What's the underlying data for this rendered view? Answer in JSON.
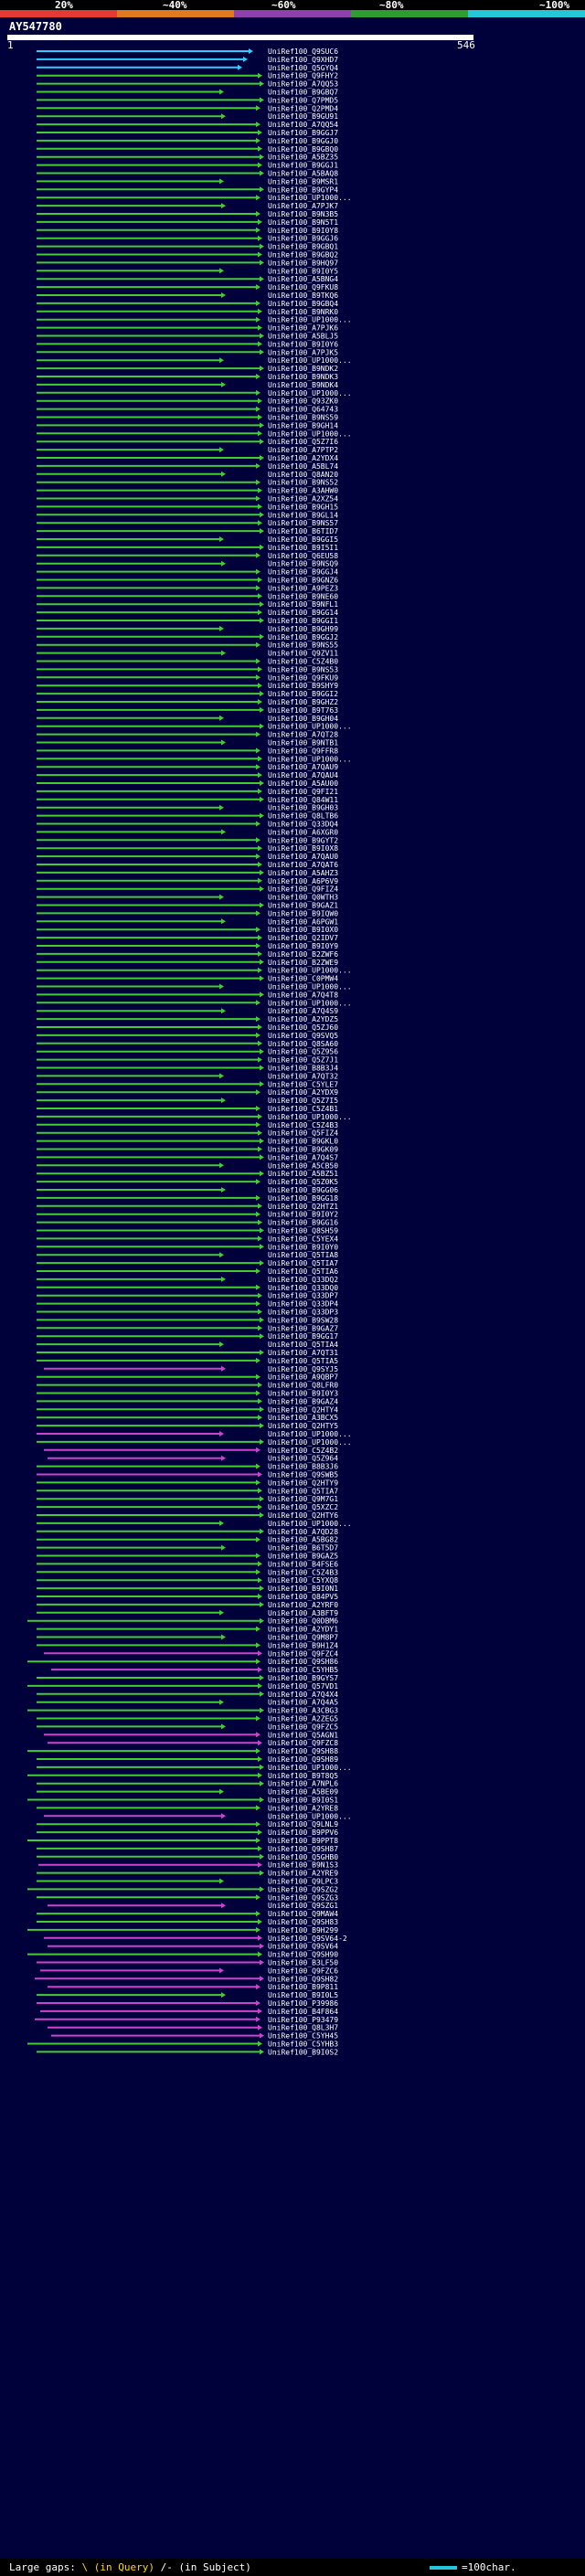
{
  "header": {
    "scale_labels": [
      "20%",
      "~40%",
      "~60%",
      "~80%",
      "~100%"
    ],
    "scale_colors": [
      "#e53935",
      "#e07a1f",
      "#8e3fb0",
      "#2e9d2e",
      "#26c6da"
    ],
    "query_name": "AY547780",
    "ruler_start": "1",
    "ruler_end": "546"
  },
  "hits": [
    {
      "id": "UniRef100_Q9SUC6",
      "color": "cyan"
    },
    {
      "id": "UniRef100_Q9XHD7",
      "color": "cyan"
    },
    {
      "id": "UniRef100_Q5GYQ4",
      "color": "cyan"
    },
    {
      "id": "UniRef100_Q9FHY2",
      "color": "green"
    },
    {
      "id": "UniRef100_A7QQ53",
      "color": "green"
    },
    {
      "id": "UniRef100_B9GBQ7",
      "color": "green"
    },
    {
      "id": "UniRef100_Q7PMD5",
      "color": "green"
    },
    {
      "id": "UniRef100_Q2PMD4",
      "color": "green"
    },
    {
      "id": "UniRef100_B9GU91",
      "color": "green"
    },
    {
      "id": "UniRef100_A7QQ54",
      "color": "green"
    },
    {
      "id": "UniRef100_B9GGJ7",
      "color": "green"
    },
    {
      "id": "UniRef100_B9GGJ0",
      "color": "green"
    },
    {
      "id": "UniRef100_B9GBQ0",
      "color": "green"
    },
    {
      "id": "UniRef100_A5BZ35",
      "color": "green"
    },
    {
      "id": "UniRef100_B9GGJ1",
      "color": "green"
    },
    {
      "id": "UniRef100_A5BAQ8",
      "color": "green"
    },
    {
      "id": "UniRef100_B9MSR1",
      "color": "green"
    },
    {
      "id": "UniRef100_B9GYP4",
      "color": "green"
    },
    {
      "id": "UniRef100_UP1000...",
      "color": "green"
    },
    {
      "id": "UniRef100_A7PJK7",
      "color": "green"
    },
    {
      "id": "UniRef100_B9N3B5",
      "color": "green"
    },
    {
      "id": "UniRef100_B9N5T1",
      "color": "green"
    },
    {
      "id": "UniRef100_B9I0Y8",
      "color": "green"
    },
    {
      "id": "UniRef100_B9GGJ6",
      "color": "green"
    },
    {
      "id": "UniRef100_B9GBQ1",
      "color": "green"
    },
    {
      "id": "UniRef100_B9GBQ2",
      "color": "green"
    },
    {
      "id": "UniRef100_B9HQ97",
      "color": "green"
    },
    {
      "id": "UniRef100_B9I0Y5",
      "color": "green"
    },
    {
      "id": "UniRef100_A5BNG4",
      "color": "green"
    },
    {
      "id": "UniRef100_Q9FKU8",
      "color": "green"
    },
    {
      "id": "UniRef100_B9TKQ6",
      "color": "green"
    },
    {
      "id": "UniRef100_B9GBQ4",
      "color": "green"
    },
    {
      "id": "UniRef100_B9NRK0",
      "color": "green"
    },
    {
      "id": "UniRef100_UP1000...",
      "color": "green"
    },
    {
      "id": "UniRef100_A7PJK6",
      "color": "green"
    },
    {
      "id": "UniRef100_A5BLJ5",
      "color": "green"
    },
    {
      "id": "UniRef100_B9I0Y6",
      "color": "green"
    },
    {
      "id": "UniRef100_A7PJK5",
      "color": "green"
    },
    {
      "id": "UniRef100_UP1000...",
      "color": "green"
    },
    {
      "id": "UniRef100_B9NDK2",
      "color": "green"
    },
    {
      "id": "UniRef100_B9NDK3",
      "color": "green"
    },
    {
      "id": "UniRef100_B9NDK4",
      "color": "green"
    },
    {
      "id": "UniRef100_UP1000...",
      "color": "green"
    },
    {
      "id": "UniRef100_Q93ZK0",
      "color": "green"
    },
    {
      "id": "UniRef100_Q64743",
      "color": "green"
    },
    {
      "id": "UniRef100_B9NS59",
      "color": "green"
    },
    {
      "id": "UniRef100_B9GH14",
      "color": "green"
    },
    {
      "id": "UniRef100_UP1000...",
      "color": "green"
    },
    {
      "id": "UniRef100_Q5Z7I6",
      "color": "green"
    },
    {
      "id": "UniRef100_A7PTP2",
      "color": "green"
    },
    {
      "id": "UniRef100_A2YDX4",
      "color": "green"
    },
    {
      "id": "UniRef100_A5BL74",
      "color": "green"
    },
    {
      "id": "UniRef100_Q8AN20",
      "color": "green"
    },
    {
      "id": "UniRef100_B9NS52",
      "color": "green"
    },
    {
      "id": "UniRef100_A3AHW0",
      "color": "green"
    },
    {
      "id": "UniRef100_A2XZ54",
      "color": "green"
    },
    {
      "id": "UniRef100_B9GH15",
      "color": "green"
    },
    {
      "id": "UniRef100_B9GL14",
      "color": "green"
    },
    {
      "id": "UniRef100_B9NS57",
      "color": "green"
    },
    {
      "id": "UniRef100_B6TID7",
      "color": "green"
    },
    {
      "id": "UniRef100_B9GGI5",
      "color": "green"
    },
    {
      "id": "UniRef100_B9I5I1",
      "color": "green"
    },
    {
      "id": "UniRef100_Q6EU58",
      "color": "green"
    },
    {
      "id": "UniRef100_B9NSQ9",
      "color": "green"
    },
    {
      "id": "UniRef100_B9GGJ4",
      "color": "green"
    },
    {
      "id": "UniRef100_B9GNZ6",
      "color": "green"
    },
    {
      "id": "UniRef100_A9PEZ3",
      "color": "green"
    },
    {
      "id": "UniRef100_B9NE60",
      "color": "green"
    },
    {
      "id": "UniRef100_B9NFL1",
      "color": "green"
    },
    {
      "id": "UniRef100_B9GG14",
      "color": "green"
    },
    {
      "id": "UniRef100_B9GGI1",
      "color": "green"
    },
    {
      "id": "UniRef100_B9GH99",
      "color": "green"
    },
    {
      "id": "UniRef100_B9GGJ2",
      "color": "green"
    },
    {
      "id": "UniRef100_B9NS55",
      "color": "green"
    },
    {
      "id": "UniRef100_Q9ZV11",
      "color": "green"
    },
    {
      "id": "UniRef100_C5Z4B0",
      "color": "green"
    },
    {
      "id": "UniRef100_B9NS53",
      "color": "green"
    },
    {
      "id": "UniRef100_Q9FKU9",
      "color": "green"
    },
    {
      "id": "UniRef100_B9SHY9",
      "color": "green"
    },
    {
      "id": "UniRef100_B9GGI2",
      "color": "green"
    },
    {
      "id": "UniRef100_B9GHZ2",
      "color": "green"
    },
    {
      "id": "UniRef100_B9T763",
      "color": "green"
    },
    {
      "id": "UniRef100_B9GH04",
      "color": "green"
    },
    {
      "id": "UniRef100_UP1000...",
      "color": "green"
    },
    {
      "id": "UniRef100_A7QT28",
      "color": "green"
    },
    {
      "id": "UniRef100_B9NTB1",
      "color": "green"
    },
    {
      "id": "UniRef100_Q9FFR8",
      "color": "green"
    },
    {
      "id": "UniRef100_UP1000...",
      "color": "green"
    },
    {
      "id": "UniRef100_A7QAU9",
      "color": "green"
    },
    {
      "id": "UniRef100_A7QAU4",
      "color": "green"
    },
    {
      "id": "UniRef100_A5AU00",
      "color": "green"
    },
    {
      "id": "UniRef100_Q9FI21",
      "color": "green"
    },
    {
      "id": "UniRef100_Q84W11",
      "color": "green"
    },
    {
      "id": "UniRef100_B9GH03",
      "color": "green"
    },
    {
      "id": "UniRef100_Q8LTB6",
      "color": "green"
    },
    {
      "id": "UniRef100_Q33DQ4",
      "color": "green"
    },
    {
      "id": "UniRef100_A6XGR0",
      "color": "green"
    },
    {
      "id": "UniRef100_B9GYT2",
      "color": "green"
    },
    {
      "id": "UniRef100_B9I0X8",
      "color": "green"
    },
    {
      "id": "UniRef100_A7QAU0",
      "color": "green"
    },
    {
      "id": "UniRef100_A7QAT6",
      "color": "green"
    },
    {
      "id": "UniRef100_A5AHZ3",
      "color": "green"
    },
    {
      "id": "UniRef100_A6P6V9",
      "color": "green"
    },
    {
      "id": "UniRef100_Q9FIZ4",
      "color": "green"
    },
    {
      "id": "UniRef100_Q0WTH3",
      "color": "green"
    },
    {
      "id": "UniRef100_B9GAZ1",
      "color": "green"
    },
    {
      "id": "UniRef100_B9IQW0",
      "color": "green"
    },
    {
      "id": "UniRef100_A6PGW1",
      "color": "green"
    },
    {
      "id": "UniRef100_B9I0X0",
      "color": "green"
    },
    {
      "id": "UniRef100_Q2IDV7",
      "color": "green"
    },
    {
      "id": "UniRef100_B9I0Y9",
      "color": "green"
    },
    {
      "id": "UniRef100_B2ZWF6",
      "color": "green"
    },
    {
      "id": "UniRef100_B2ZWE9",
      "color": "green"
    },
    {
      "id": "UniRef100_UP1000...",
      "color": "green"
    },
    {
      "id": "UniRef100_C0PMW4",
      "color": "green"
    },
    {
      "id": "UniRef100_UP1000...",
      "color": "green"
    },
    {
      "id": "UniRef100_A7Q4T8",
      "color": "green"
    },
    {
      "id": "UniRef100_UP1000...",
      "color": "green"
    },
    {
      "id": "UniRef100_A7Q4S9",
      "color": "green"
    },
    {
      "id": "UniRef100_A2YDZ5",
      "color": "green"
    },
    {
      "id": "UniRef100_Q5ZJ60",
      "color": "green"
    },
    {
      "id": "UniRef100_Q9SVQ5",
      "color": "green"
    },
    {
      "id": "UniRef100_Q8SA60",
      "color": "green"
    },
    {
      "id": "UniRef100_Q5Z956",
      "color": "green"
    },
    {
      "id": "UniRef100_Q5Z7J1",
      "color": "green"
    },
    {
      "id": "UniRef100_B8B3J4",
      "color": "green"
    },
    {
      "id": "UniRef100_A7QT32",
      "color": "green"
    },
    {
      "id": "UniRef100_C5YLE7",
      "color": "green"
    },
    {
      "id": "UniRef100_A2YDX9",
      "color": "green"
    },
    {
      "id": "UniRef100_Q5Z7I5",
      "color": "green"
    },
    {
      "id": "UniRef100_C5Z4B1",
      "color": "green"
    },
    {
      "id": "UniRef100_UP1000...",
      "color": "green"
    },
    {
      "id": "UniRef100_C5Z4B3",
      "color": "green"
    },
    {
      "id": "UniRef100_Q5FIZ4",
      "color": "green"
    },
    {
      "id": "UniRef100_B9GKL0",
      "color": "green"
    },
    {
      "id": "UniRef100_B9GK09",
      "color": "green"
    },
    {
      "id": "UniRef100_A7Q4S7",
      "color": "green"
    },
    {
      "id": "UniRef100_A5CB50",
      "color": "green"
    },
    {
      "id": "UniRef100_A5BZ51",
      "color": "green"
    },
    {
      "id": "UniRef100_Q5Z0K5",
      "color": "green"
    },
    {
      "id": "UniRef100_B9GG06",
      "color": "green"
    },
    {
      "id": "UniRef100_B9GG18",
      "color": "green"
    },
    {
      "id": "UniRef100_Q2HTZ1",
      "color": "green"
    },
    {
      "id": "UniRef100_B9I0Y2",
      "color": "green"
    },
    {
      "id": "UniRef100_B9GG16",
      "color": "green"
    },
    {
      "id": "UniRef100_Q8SH59",
      "color": "green"
    },
    {
      "id": "UniRef100_C5YEX4",
      "color": "green"
    },
    {
      "id": "UniRef100_B9I0Y0",
      "color": "green"
    },
    {
      "id": "UniRef100_Q5TIA8",
      "color": "green"
    },
    {
      "id": "UniRef100_Q5TIA7",
      "color": "green"
    },
    {
      "id": "UniRef100_Q5TIA6",
      "color": "green"
    },
    {
      "id": "UniRef100_Q33DQ2",
      "color": "green"
    },
    {
      "id": "UniRef100_Q33DQ0",
      "color": "green"
    },
    {
      "id": "UniRef100_Q33DP7",
      "color": "green"
    },
    {
      "id": "UniRef100_Q33DP4",
      "color": "green"
    },
    {
      "id": "UniRef100_Q33DP3",
      "color": "green"
    },
    {
      "id": "UniRef100_B9SW28",
      "color": "green"
    },
    {
      "id": "UniRef100_B9GAZ7",
      "color": "green"
    },
    {
      "id": "UniRef100_B9GG17",
      "color": "green"
    },
    {
      "id": "UniRef100_Q5TIA4",
      "color": "green"
    },
    {
      "id": "UniRef100_A7QT31",
      "color": "green"
    },
    {
      "id": "UniRef100_Q5TIA5",
      "color": "green"
    },
    {
      "id": "UniRef100_Q9SYJ5",
      "color": "magenta"
    },
    {
      "id": "UniRef100_A9QBP7",
      "color": "green"
    },
    {
      "id": "UniRef100_Q8LFR0",
      "color": "green"
    },
    {
      "id": "UniRef100_B9I0Y3",
      "color": "green"
    },
    {
      "id": "UniRef100_B9GAZ4",
      "color": "green"
    },
    {
      "id": "UniRef100_Q2HTY4",
      "color": "green"
    },
    {
      "id": "UniRef100_A3BCX5",
      "color": "green"
    },
    {
      "id": "UniRef100_Q2HTY5",
      "color": "green"
    },
    {
      "id": "UniRef100_UP1000...",
      "color": "magenta"
    },
    {
      "id": "UniRef100_UP1000...",
      "color": "green"
    },
    {
      "id": "UniRef100_C5Z4B2",
      "color": "magenta"
    },
    {
      "id": "UniRef100_Q5Z964",
      "color": "magenta"
    },
    {
      "id": "UniRef100_B8B3J6",
      "color": "green"
    },
    {
      "id": "UniRef100_Q9SWB5",
      "color": "magenta"
    },
    {
      "id": "UniRef100_Q2HTY9",
      "color": "green"
    },
    {
      "id": "UniRef100_Q5TIA7",
      "color": "green"
    },
    {
      "id": "UniRef100_Q9M7G1",
      "color": "green"
    },
    {
      "id": "UniRef100_Q5XZC2",
      "color": "green"
    },
    {
      "id": "UniRef100_Q2HTY6",
      "color": "green"
    },
    {
      "id": "UniRef100_UP1000...",
      "color": "green"
    },
    {
      "id": "UniRef100_A7QD28",
      "color": "green"
    },
    {
      "id": "UniRef100_A5BG82",
      "color": "green"
    },
    {
      "id": "UniRef100_B6T5D7",
      "color": "green"
    },
    {
      "id": "UniRef100_B9GAZ5",
      "color": "green"
    },
    {
      "id": "UniRef100_B4FSE6",
      "color": "green"
    },
    {
      "id": "UniRef100_C5Z4B3",
      "color": "green"
    },
    {
      "id": "UniRef100_C5YXQ8",
      "color": "green"
    },
    {
      "id": "UniRef100_B9I0N1",
      "color": "green"
    },
    {
      "id": "UniRef100_Q84PV5",
      "color": "green"
    },
    {
      "id": "UniRef100_A2YRF0",
      "color": "green"
    },
    {
      "id": "UniRef100_A3BFT9",
      "color": "green"
    },
    {
      "id": "UniRef100_Q0DBM6",
      "color": "green"
    },
    {
      "id": "UniRef100_A2YDY1",
      "color": "green"
    },
    {
      "id": "UniRef100_Q9M8P7",
      "color": "green"
    },
    {
      "id": "UniRef100_B9H1Z4",
      "color": "green"
    },
    {
      "id": "UniRef100_Q9FZC4",
      "color": "magenta"
    },
    {
      "id": "UniRef100_Q9SH86",
      "color": "green"
    },
    {
      "id": "UniRef100_C5YHB5",
      "color": "magenta"
    },
    {
      "id": "UniRef100_B9GYS7",
      "color": "green"
    },
    {
      "id": "UniRef100_Q57VD1",
      "color": "green"
    },
    {
      "id": "UniRef100_A7Q4X4",
      "color": "green"
    },
    {
      "id": "UniRef100_A7Q4A5",
      "color": "green"
    },
    {
      "id": "UniRef100_A3CBG3",
      "color": "green"
    },
    {
      "id": "UniRef100_A2ZEG5",
      "color": "green"
    },
    {
      "id": "UniRef100_Q9FZC5",
      "color": "green"
    },
    {
      "id": "UniRef100_Q5AGN1",
      "color": "magenta"
    },
    {
      "id": "UniRef100_Q9FZC8",
      "color": "magenta"
    },
    {
      "id": "UniRef100_Q9SH88",
      "color": "green"
    },
    {
      "id": "UniRef100_Q9SH89",
      "color": "green"
    },
    {
      "id": "UniRef100_UP1000...",
      "color": "green"
    },
    {
      "id": "UniRef100_B9T8Q5",
      "color": "green"
    },
    {
      "id": "UniRef100_A7NPL6",
      "color": "green"
    },
    {
      "id": "UniRef100_A5BE09",
      "color": "green"
    },
    {
      "id": "UniRef100_B9I0S1",
      "color": "green"
    },
    {
      "id": "UniRef100_A2YRE8",
      "color": "green"
    },
    {
      "id": "UniRef100_UP1000...",
      "color": "magenta"
    },
    {
      "id": "UniRef100_Q9LNL9",
      "color": "green"
    },
    {
      "id": "UniRef100_B9PPV6",
      "color": "green"
    },
    {
      "id": "UniRef100_B9PPT8",
      "color": "green"
    },
    {
      "id": "UniRef100_Q9SH87",
      "color": "green"
    },
    {
      "id": "UniRef100_Q5GHB0",
      "color": "green"
    },
    {
      "id": "UniRef100_B9N1S3",
      "color": "magenta"
    },
    {
      "id": "UniRef100_A2YRE9",
      "color": "green"
    },
    {
      "id": "UniRef100_Q9LPC3",
      "color": "green"
    },
    {
      "id": "UniRef100_Q9SZG2",
      "color": "green"
    },
    {
      "id": "UniRef100_Q9SZG3",
      "color": "green"
    },
    {
      "id": "UniRef100_Q9SZG1",
      "color": "magenta"
    },
    {
      "id": "UniRef100_Q9MAW4",
      "color": "green"
    },
    {
      "id": "UniRef100_Q9SH83",
      "color": "green"
    },
    {
      "id": "UniRef100_B9H299",
      "color": "green"
    },
    {
      "id": "UniRef100_Q9SV64-2",
      "color": "magenta"
    },
    {
      "id": "UniRef100_Q9SV64",
      "color": "magenta"
    },
    {
      "id": "UniRef100_Q9SH90",
      "color": "green"
    },
    {
      "id": "UniRef100_B3LF50",
      "color": "magenta"
    },
    {
      "id": "UniRef100_Q9FZC6",
      "color": "magenta"
    },
    {
      "id": "UniRef100_Q9SH82",
      "color": "magenta"
    },
    {
      "id": "UniRef100_B9P811",
      "color": "magenta"
    },
    {
      "id": "UniRef100_B9I0L5",
      "color": "green"
    },
    {
      "id": "UniRef100_P39986",
      "color": "magenta"
    },
    {
      "id": "UniRef100_B4F864",
      "color": "magenta"
    },
    {
      "id": "UniRef100_P93479",
      "color": "magenta"
    },
    {
      "id": "UniRef100_Q8L3H7",
      "color": "magenta"
    },
    {
      "id": "UniRef100_C5YH45",
      "color": "magenta"
    },
    {
      "id": "UniRef100_C5YHB3",
      "color": "green"
    },
    {
      "id": "UniRef100_B9I0S2",
      "color": "green"
    }
  ],
  "footer": {
    "legend_text": "Large gaps: ",
    "legend_query": "\\ (in Query)",
    "legend_sep": " /- (in Subject)",
    "legend_scale": "=100char."
  },
  "colors": {
    "cyan": "#33ccff",
    "green": "#44cc33",
    "magenta": "#cc44cc",
    "label": "#ffffff"
  }
}
